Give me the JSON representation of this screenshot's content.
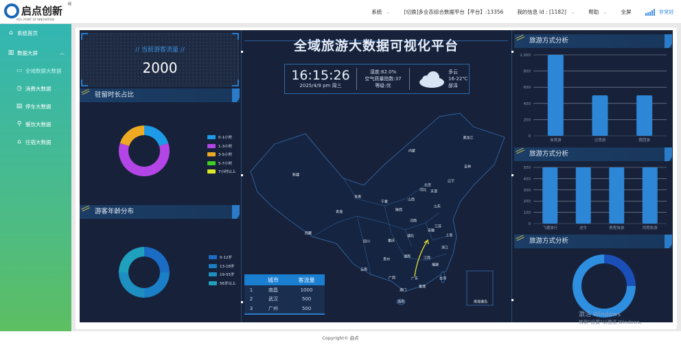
{
  "header": {
    "brand": "启点创新",
    "brand_sub": "REV. POINT OF INNOVATION",
    "reg": "®",
    "nav": [
      {
        "label": "系统",
        "chev": true
      },
      {
        "label": "[切换]多业态综合数据平台【平台】:13356",
        "chev": false
      },
      {
        "label": "我的信息 Id : [1182]",
        "chev": true
      },
      {
        "label": "帮助",
        "chev": true
      },
      {
        "label": "全屏",
        "chev": false
      }
    ],
    "signal_label": "非常好",
    "accent": "#3d8fe0"
  },
  "sidebar": {
    "items": [
      {
        "label": "系统首页",
        "icon": "home-icon"
      },
      {
        "label": "数据大屏",
        "icon": "bar-chart-icon",
        "expanded": true
      },
      {
        "label": "全域数据大数据",
        "icon": "screen-icon",
        "active": true
      },
      {
        "label": "消费大数据",
        "icon": "clock-icon"
      },
      {
        "label": "停车大数据",
        "icon": "document-icon"
      },
      {
        "label": "餐饮大数据",
        "icon": "utensils-icon"
      },
      {
        "label": "住宿大数据",
        "icon": "house-icon"
      }
    ]
  },
  "dashboard": {
    "title": "全域旅游大数据可视化平台",
    "flow": {
      "label": "// 当前游客流量 //",
      "value": "2000"
    },
    "time": "16:15:26",
    "date": "2025/4/9  pm  周三",
    "air": {
      "humidity": "湿度:82.0%",
      "aqi": "空气质量指数:37",
      "level": "等级:优"
    },
    "weather": {
      "desc": "多云",
      "temp": "16-22℃",
      "city": "部泽"
    },
    "panels": {
      "stay": "驻留时长占比",
      "age": "游客年龄分布",
      "travel1": "旅游方式分析",
      "travel2": "旅游方式分析",
      "travel3": "旅游方式分析"
    },
    "map": {
      "provinces": [
        "黑龙江",
        "内蒙",
        "吉林",
        "辽宁",
        "北京",
        "河北",
        "天津",
        "新疆",
        "甘肃",
        "宁夏",
        "山西",
        "陕西",
        "山东",
        "青海",
        "河南",
        "江苏",
        "安徽",
        "西藏",
        "湖北",
        "上海",
        "四川",
        "重庆",
        "浙江",
        "湖南",
        "江西",
        "贵州",
        "福建",
        "云南",
        "广西",
        "广东",
        "台湾",
        "香港",
        "澳门",
        "海南"
      ],
      "inset_label": "南海诸岛",
      "route_color": "#e8e337"
    },
    "table": {
      "headers": [
        "",
        "城市",
        "客流量"
      ],
      "rows": [
        [
          "1",
          "南昌",
          "1000"
        ],
        [
          "2",
          "武汉",
          "500"
        ],
        [
          "3",
          "广州",
          "500"
        ]
      ]
    }
  },
  "chart_data": [
    {
      "type": "pie",
      "name": "stay-donut",
      "categories": [
        "0-1小时",
        "1-3小时",
        "3-5小时",
        "5-7小时",
        "7小时以上"
      ],
      "values": [
        20,
        60,
        20,
        0,
        0
      ],
      "colors": [
        "#1e9be8",
        "#b345e6",
        "#eeaa22",
        "#3ecf22",
        "#dce827"
      ],
      "legend": "right"
    },
    {
      "type": "pie",
      "name": "age-donut",
      "categories": [
        "0-12岁",
        "13-18岁",
        "19-55岁",
        "56岁以上"
      ],
      "values": [
        25,
        25,
        25,
        25
      ],
      "colors": [
        "#1a6cc4",
        "#1a7fc6",
        "#1d8fc0",
        "#1fa0bd"
      ],
      "legend": "right"
    },
    {
      "type": "bar",
      "name": "travel-bar-1",
      "categories": [
        "自驾游",
        "过夜游",
        "跟团游"
      ],
      "values": [
        1000,
        500,
        500
      ],
      "ylim": [
        0,
        1000
      ],
      "yticks": [
        "0",
        "200",
        "400",
        "600",
        "800",
        "1,000"
      ],
      "grid": true,
      "color": "#2e86d6"
    },
    {
      "type": "bar",
      "name": "travel-bar-2",
      "categories": [
        "飞猪旅行",
        "途牛",
        "携程旅游",
        "同程旅游"
      ],
      "values": [
        500,
        500,
        500,
        500
      ],
      "ylim": [
        0,
        500
      ],
      "yticks": [
        "0",
        "100",
        "200",
        "300",
        "400",
        "500"
      ],
      "grid": true,
      "color": "#2e86d6"
    },
    {
      "type": "pie",
      "name": "travel-donut",
      "values": [
        25,
        75
      ],
      "colors": [
        "#1a4fb8",
        "#2e8ee0"
      ]
    }
  ],
  "watermark": {
    "line1": "激活 Windows",
    "line2": "转到\"设置\"以激活 Windows。"
  },
  "footer": {
    "copyright": "Copyright© 启点"
  }
}
